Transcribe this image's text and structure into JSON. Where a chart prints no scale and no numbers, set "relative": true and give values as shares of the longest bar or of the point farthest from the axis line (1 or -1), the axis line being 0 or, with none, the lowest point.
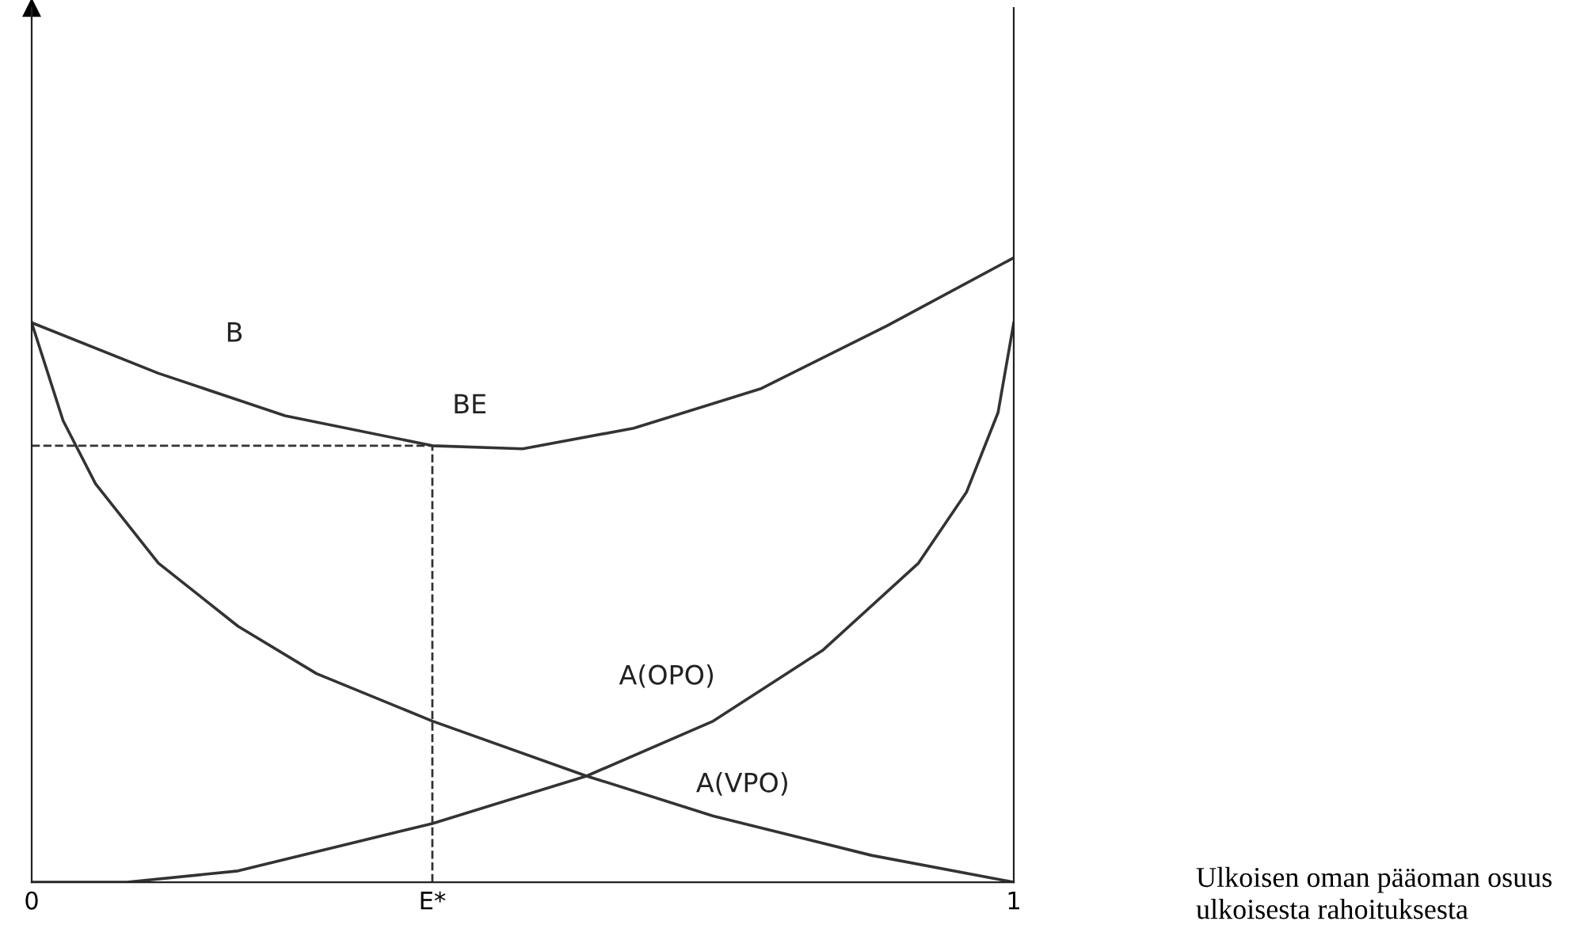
{
  "chart_data": {
    "type": "line",
    "relative": true,
    "xlim": [
      0,
      1
    ],
    "xticks": [
      0,
      {
        "value": 0.408,
        "label": "E*"
      },
      1
    ],
    "tick_labels": "x",
    "grid": false,
    "legend": false,
    "marker": "none",
    "line_style": "solid",
    "series": [
      {
        "name": "B",
        "color": "#333333",
        "x": [
          0,
          0.129,
          0.258,
          0.408,
          0.5,
          0.613,
          0.742,
          0.871,
          1
        ],
        "values": [
          0.896,
          0.815,
          0.747,
          0.699,
          0.694,
          0.727,
          0.79,
          0.891,
          1
        ]
      },
      {
        "name": "A(VPO)",
        "color": "#333333",
        "x": [
          0,
          0.032,
          0.065,
          0.129,
          0.21,
          0.29,
          0.408,
          0.565,
          0.694,
          0.855,
          1
        ],
        "values": [
          0.896,
          0.739,
          0.638,
          0.511,
          0.41,
          0.334,
          0.258,
          0.17,
          0.106,
          0.043,
          0
        ]
      },
      {
        "name": "A(OPO)",
        "color": "#333333",
        "x": [
          0,
          0.097,
          0.21,
          0.408,
          0.565,
          0.694,
          0.806,
          0.903,
          0.952,
          0.984,
          1
        ],
        "values": [
          0,
          0,
          0.018,
          0.094,
          0.17,
          0.258,
          0.372,
          0.511,
          0.625,
          0.752,
          0.896
        ]
      }
    ],
    "ref_lines": [
      {
        "axis": "y",
        "value": 0.699,
        "color": "#333333",
        "line_style": "dashed"
      },
      {
        "axis": "x",
        "value": 0.408,
        "color": "#333333",
        "line_style": "dashed"
      }
    ],
    "annotations": [
      {
        "text": "BE",
        "x": 0.408,
        "y": 0.699
      },
      "Ulkoisen oman pääoman osuus ulkoisesta rahoituksesta"
    ]
  }
}
